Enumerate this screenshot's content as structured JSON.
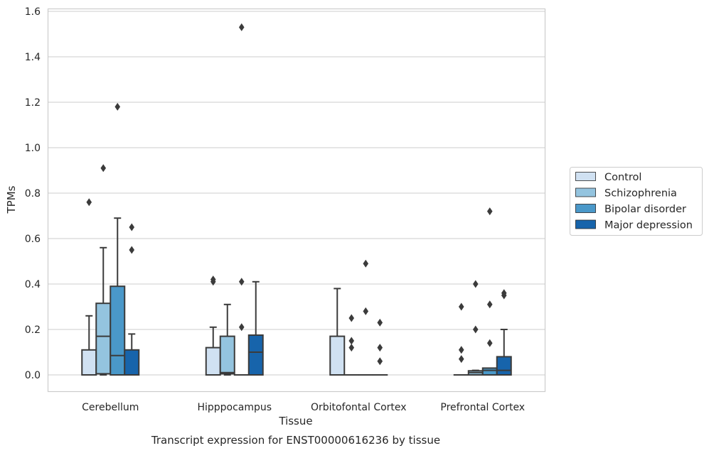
{
  "chart_data": {
    "type": "box",
    "title": "Transcript expression for ENST00000616236 by tissue",
    "xlabel": "Tissue",
    "ylabel": "TPMs",
    "ylim": [
      -0.07,
      1.61
    ],
    "yticks": [
      "0.0",
      "0.2",
      "0.4",
      "0.6",
      "0.8",
      "1.0",
      "1.2",
      "1.4",
      "1.6"
    ],
    "grid": true,
    "legend_position": "right",
    "categories": [
      "Cerebellum",
      "Hipppocampus",
      "Orbitofontal Cortex",
      "Prefrontal Cortex"
    ],
    "series": [
      {
        "name": "Control",
        "color": "#d0e1f2",
        "boxes": [
          {
            "q1": 0.0,
            "median": 0.0,
            "q3": 0.11,
            "whisker_low": 0.0,
            "whisker_high": 0.26,
            "outliers": [
              0.76
            ]
          },
          {
            "q1": 0.0,
            "median": 0.0,
            "q3": 0.12,
            "whisker_low": 0.0,
            "whisker_high": 0.21,
            "outliers": [
              0.41,
              0.42
            ]
          },
          {
            "q1": 0.0,
            "median": 0.0,
            "q3": 0.17,
            "whisker_low": 0.0,
            "whisker_high": 0.38,
            "outliers": []
          },
          {
            "q1": 0.0,
            "median": 0.0,
            "q3": 0.0,
            "whisker_low": 0.0,
            "whisker_high": 0.0,
            "outliers": [
              0.07,
              0.11,
              0.3
            ]
          }
        ]
      },
      {
        "name": "Schizophrenia",
        "color": "#94c4df",
        "boxes": [
          {
            "q1": 0.005,
            "median": 0.17,
            "q3": 0.315,
            "whisker_low": 0.0,
            "whisker_high": 0.56,
            "outliers": [
              0.91
            ]
          },
          {
            "q1": 0.005,
            "median": 0.01,
            "q3": 0.17,
            "whisker_low": 0.0,
            "whisker_high": 0.31,
            "outliers": []
          },
          {
            "q1": 0.0,
            "median": 0.0,
            "q3": 0.0,
            "whisker_low": 0.0,
            "whisker_high": 0.0,
            "outliers": [
              0.12,
              0.15,
              0.25
            ]
          },
          {
            "q1": 0.0,
            "median": 0.01,
            "q3": 0.018,
            "whisker_low": 0.0,
            "whisker_high": 0.02,
            "outliers": [
              0.2,
              0.4
            ]
          }
        ]
      },
      {
        "name": "Bipolar disorder",
        "color": "#4a98c9",
        "boxes": [
          {
            "q1": 0.0,
            "median": 0.085,
            "q3": 0.39,
            "whisker_low": 0.0,
            "whisker_high": 0.69,
            "outliers": [
              1.18
            ]
          },
          {
            "q1": 0.0,
            "median": 0.0,
            "q3": 0.0,
            "whisker_low": 0.0,
            "whisker_high": 0.0,
            "outliers": [
              0.21,
              0.41,
              1.53
            ]
          },
          {
            "q1": 0.0,
            "median": 0.0,
            "q3": 0.0,
            "whisker_low": 0.0,
            "whisker_high": 0.0,
            "outliers": [
              0.28,
              0.49
            ]
          },
          {
            "q1": 0.0,
            "median": 0.02,
            "q3": 0.03,
            "whisker_low": 0.0,
            "whisker_high": 0.03,
            "outliers": [
              0.14,
              0.31,
              0.72
            ]
          }
        ]
      },
      {
        "name": "Major depression",
        "color": "#1764ab",
        "boxes": [
          {
            "q1": 0.0,
            "median": 0.0,
            "q3": 0.11,
            "whisker_low": 0.0,
            "whisker_high": 0.18,
            "outliers": [
              0.55,
              0.65
            ]
          },
          {
            "q1": 0.0,
            "median": 0.1,
            "q3": 0.175,
            "whisker_low": 0.0,
            "whisker_high": 0.41,
            "outliers": []
          },
          {
            "q1": 0.0,
            "median": 0.0,
            "q3": 0.0,
            "whisker_low": 0.0,
            "whisker_high": 0.0,
            "outliers": [
              0.06,
              0.12,
              0.23
            ]
          },
          {
            "q1": 0.0,
            "median": 0.02,
            "q3": 0.08,
            "whisker_low": 0.0,
            "whisker_high": 0.2,
            "outliers": [
              0.35,
              0.36
            ]
          }
        ]
      }
    ]
  }
}
